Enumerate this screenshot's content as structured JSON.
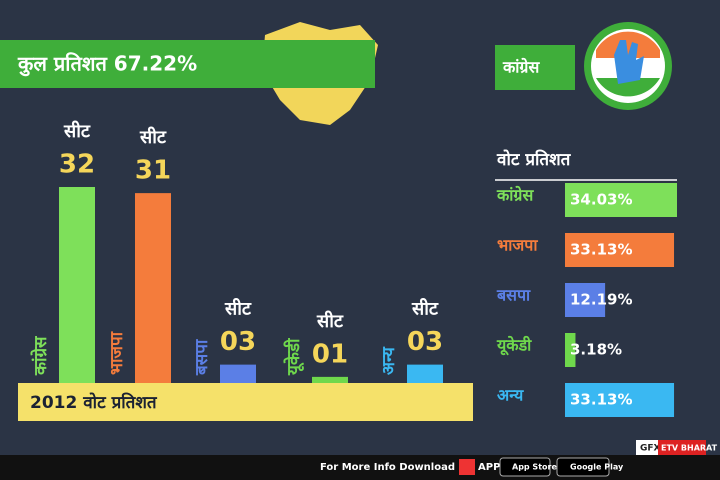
{
  "header": {
    "title": "कुल प्रतिशत 67.22%",
    "party": "कांग्रेस",
    "band": "2012 वोट प्रतिशत"
  },
  "chart_data": [
    {
      "type": "bar",
      "bar_caption": "सीट",
      "categories": [
        "कांग्रेस",
        "भाजपा",
        "बसपा",
        "यूकेडी",
        "अन्य"
      ],
      "values": [
        32,
        31,
        3,
        1,
        3
      ],
      "value_labels": [
        "32",
        "31",
        "03",
        "01",
        "03"
      ],
      "colors": [
        "#7ee05a",
        "#f47c3c",
        "#5b7fe6",
        "#6fd84c",
        "#3ab8f2"
      ]
    },
    {
      "type": "hbar",
      "title": "वोट प्रतिशत",
      "categories": [
        "कांग्रेस",
        "भाजपा",
        "बसपा",
        "यूकेडी",
        "अन्य"
      ],
      "values": [
        34.03,
        33.13,
        12.19,
        3.18,
        33.13
      ],
      "value_labels": [
        "34.03%",
        "33.13%",
        "12.19%",
        "3.18%",
        "33.13%"
      ],
      "colors": [
        "#7ee05a",
        "#f47c3c",
        "#5b7fe6",
        "#6fd84c",
        "#3ab8f2"
      ]
    }
  ],
  "footer": {
    "text": "For More Info Download",
    "app": "APP",
    "app_store": "App Store",
    "google_play": "Google Play",
    "gfx": "GFX",
    "brand": "ETV BHARAT"
  }
}
